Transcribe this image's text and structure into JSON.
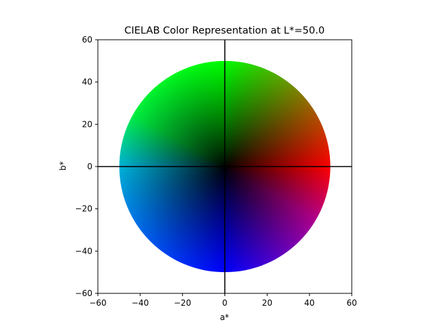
{
  "chart_data": {
    "type": "heatmap",
    "title": "CIELAB Color Representation at L*=50.0",
    "xlabel": "a*",
    "ylabel": "b*",
    "xlim": [
      -60,
      60
    ],
    "ylim": [
      -60,
      60
    ],
    "x_ticks": [
      -60,
      -40,
      -20,
      0,
      20,
      40,
      60
    ],
    "y_ticks": [
      -60,
      -40,
      -20,
      0,
      20,
      40,
      60
    ],
    "x_tick_labels": [
      "−60",
      "−40",
      "−20",
      "0",
      "20",
      "40",
      "60"
    ],
    "y_tick_labels": [
      "−60",
      "−40",
      "−20",
      "0",
      "20",
      "40",
      "60"
    ],
    "L_value": 50.0,
    "disk_radius": 50,
    "reference_lines": [
      {
        "orientation": "horizontal",
        "value": 0
      },
      {
        "orientation": "vertical",
        "value": 0
      }
    ],
    "grid": false,
    "colors": {
      "positive_a": "#ff0000",
      "negative_a": "#00ffff",
      "positive_b": "#00ff00",
      "negative_b": "#0000ff"
    }
  }
}
